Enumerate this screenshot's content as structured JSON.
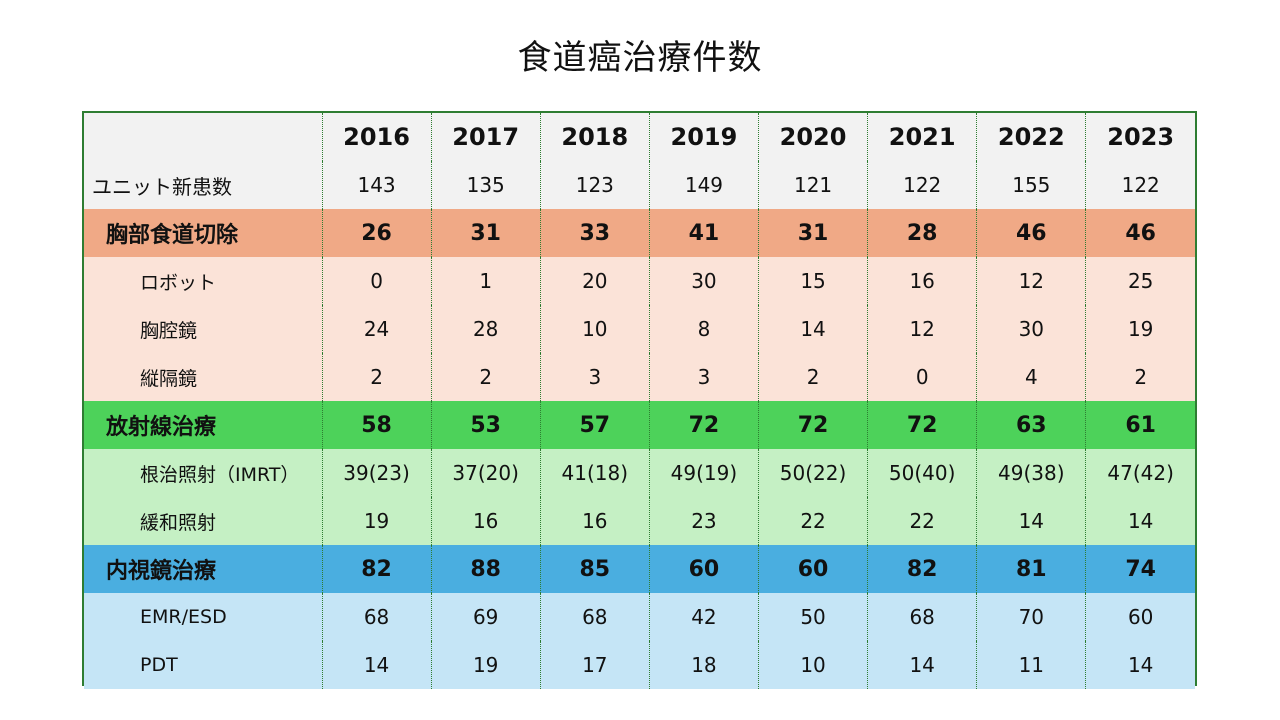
{
  "title": "食道癌治療件数",
  "colors": {
    "border": "#2e7d32",
    "header_bg": "#f2f2f2",
    "surgery": "#f0a986",
    "surgery_sub": "#fbe3d8",
    "radiation": "#4dd25a",
    "radiation_sub": "#c5f0c4",
    "endoscopy": "#4aaee0",
    "endoscopy_sub": "#c5e5f6"
  },
  "years": [
    "2016",
    "2017",
    "2018",
    "2019",
    "2020",
    "2021",
    "2022",
    "2023"
  ],
  "rows": {
    "new_patients": {
      "label": "ユニット新患数",
      "values": [
        "143",
        "135",
        "123",
        "149",
        "121",
        "122",
        "155",
        "122"
      ]
    },
    "surgery": {
      "label": "胸部食道切除",
      "values": [
        "26",
        "31",
        "33",
        "41",
        "31",
        "28",
        "46",
        "46"
      ]
    },
    "robot": {
      "label": "ロボット",
      "values": [
        "0",
        "1",
        "20",
        "30",
        "15",
        "16",
        "12",
        "25"
      ]
    },
    "thoracoscope": {
      "label": "胸腔鏡",
      "values": [
        "24",
        "28",
        "10",
        "8",
        "14",
        "12",
        "30",
        "19"
      ]
    },
    "mediastinoscope": {
      "label": "縦隔鏡",
      "values": [
        "2",
        "2",
        "3",
        "3",
        "2",
        "0",
        "4",
        "2"
      ]
    },
    "radiation": {
      "label": "放射線治療",
      "values": [
        "58",
        "53",
        "57",
        "72",
        "72",
        "72",
        "63",
        "61"
      ]
    },
    "curative": {
      "label": "根治照射（IMRT）",
      "values": [
        "39(23)",
        "37(20)",
        "41(18)",
        "49(19)",
        "50(22)",
        "50(40)",
        "49(38)",
        "47(42)"
      ]
    },
    "palliative": {
      "label": "緩和照射",
      "values": [
        "19",
        "16",
        "16",
        "23",
        "22",
        "22",
        "14",
        "14"
      ]
    },
    "endoscopy": {
      "label": "内視鏡治療",
      "values": [
        "82",
        "88",
        "85",
        "60",
        "60",
        "82",
        "81",
        "74"
      ]
    },
    "emr_esd": {
      "label": "EMR/ESD",
      "values": [
        "68",
        "69",
        "68",
        "42",
        "50",
        "68",
        "70",
        "60"
      ]
    },
    "pdt": {
      "label": "PDT",
      "values": [
        "14",
        "19",
        "17",
        "18",
        "10",
        "14",
        "11",
        "14"
      ]
    }
  }
}
